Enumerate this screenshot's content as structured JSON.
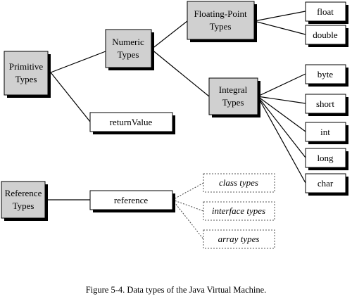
{
  "nodes": {
    "primitive_types": [
      "Primitive",
      "Types"
    ],
    "numeric_types": [
      "Numeric",
      "Types"
    ],
    "floating_point_types": [
      "Floating-Point",
      "Types"
    ],
    "integral_types": [
      "Integral",
      "Types"
    ],
    "return_value": "returnValue",
    "float": "float",
    "double": "double",
    "byte": "byte",
    "short": "short",
    "int": "int",
    "long": "long",
    "char": "char",
    "reference_types": [
      "Reference",
      "Types"
    ],
    "reference": "reference",
    "class_types": "class types",
    "interface_types": "interface types",
    "array_types": "array types"
  },
  "caption": "Figure 5-4. Data types of the Java Virtual Machine.",
  "colors": {
    "category_fill": "#d0d0d0",
    "leaf_fill": "#ffffff",
    "shadow": "#000000"
  }
}
